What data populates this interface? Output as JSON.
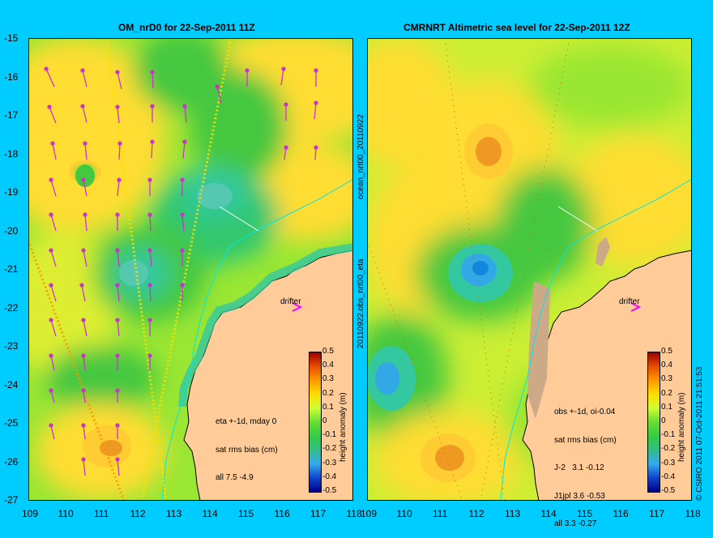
{
  "panels": {
    "left": {
      "title": "OM_nrD0 for 22-Sep-2011 11Z",
      "stats": [
        "eta +-1d, mday 0",
        "sat rms bias (cm)",
        "all 7.5 -4.9"
      ],
      "drifter_label": "drifter"
    },
    "right": {
      "title": "CMRNRT Altimetric sea level  for 22-Sep-2011 12Z",
      "stats": [
        "obs +-1d, oi-0.04",
        "sat rms bias (cm)",
        "J-2   3.1 -0.12",
        "J1jpl 3.6 -0.53",
        "all 3.3 -0.27"
      ],
      "drifter_label": "drifter"
    }
  },
  "side_labels": {
    "center_top": "ocean_nrt00_20110922",
    "center_bottom": "20110922.obs_nrt00_eta",
    "right_edge": "© CSIRO 2011  07-Oct-2011 21:51:53"
  },
  "axes": {
    "y_ticks": [
      "-15",
      "-16",
      "-17",
      "-18",
      "-19",
      "-20",
      "-21",
      "-22",
      "-23",
      "-24",
      "-25",
      "-26",
      "-27"
    ],
    "x_ticks": [
      "109",
      "110",
      "111",
      "112",
      "113",
      "114",
      "115",
      "116",
      "117",
      "118"
    ]
  },
  "colorbar": {
    "label": "height anomaly (m)",
    "ticks": [
      "0.5",
      "0.4",
      "0.3",
      "0.2",
      "0.1",
      "0",
      "-0.1",
      "-0.2",
      "-0.3",
      "-0.4",
      "-0.5"
    ],
    "colors": [
      "#990000",
      "#e64d00",
      "#ff9900",
      "#ffdd00",
      "#ccff33",
      "#66dd33",
      "#33cc44",
      "#33bb88",
      "#33aaee",
      "#1144cc",
      "#000088"
    ]
  },
  "map_colors": {
    "land": "#ffcc99",
    "sea_high": "#ffdd33",
    "sea_mid": "#99e633",
    "sea_low": "#44c840",
    "sea_verylow": "#33c8a0",
    "trough": "#33a8e6",
    "peak": "#ee9922",
    "vectors": "#cc33cc",
    "drifter": "#ff00ff",
    "coastline": "#000000",
    "contour_200m": "#00e6e6"
  }
}
